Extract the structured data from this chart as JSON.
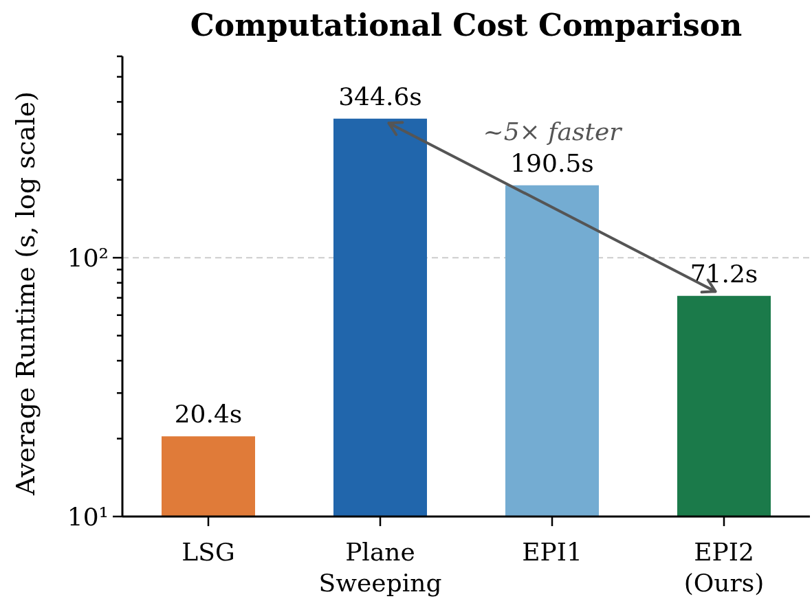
{
  "chart_data": {
    "type": "bar",
    "title": "Computational Cost Comparison",
    "ylabel": "Average Runtime (s, log scale)",
    "categories": [
      "LSG",
      "Plane\nSweeping",
      "EPI1",
      "EPI2\n(Ours)"
    ],
    "values": [
      20.4,
      344.6,
      190.5,
      71.2
    ],
    "colors": [
      "#e07b39",
      "#2166ac",
      "#74acd2",
      "#1b7a4a"
    ],
    "value_labels": [
      "20.4s",
      "344.6s",
      "190.5s",
      "71.2s"
    ],
    "log": true,
    "ylim": [
      10,
      600
    ],
    "yticks": [
      {
        "value": 10,
        "label": "10¹"
      },
      {
        "value": 20,
        "label": null
      },
      {
        "value": 30,
        "label": null
      },
      {
        "value": 40,
        "label": null
      },
      {
        "value": 50,
        "label": null
      },
      {
        "value": 60,
        "label": null
      },
      {
        "value": 70,
        "label": null
      },
      {
        "value": 80,
        "label": null
      },
      {
        "value": 90,
        "label": null
      },
      {
        "value": 100,
        "label": "10²"
      },
      {
        "value": 200,
        "label": null
      },
      {
        "value": 300,
        "label": null
      },
      {
        "value": 400,
        "label": null
      },
      {
        "value": 500,
        "label": null
      },
      {
        "value": 600,
        "label": null
      }
    ],
    "grid": "y",
    "annotations": [
      "~5× faster"
    ]
  }
}
